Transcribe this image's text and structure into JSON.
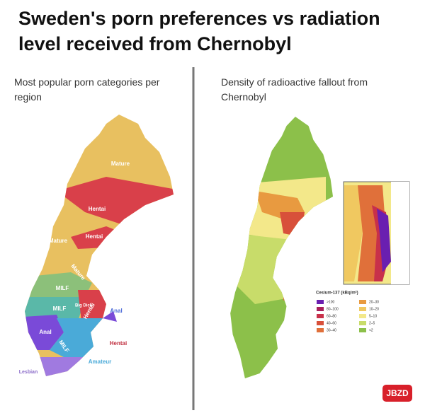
{
  "header": {
    "title": "Sweden's porn preferences vs radiation level received from Chernobyl"
  },
  "left_panel": {
    "subtitle": "Most popular porn categories per region",
    "labels": [
      "Mature",
      "Hentai",
      "Mature",
      "Hentai",
      "Mature",
      "MILF",
      "MILF",
      "Big Dick",
      "Hentai",
      "Anal",
      "Anal",
      "MILF",
      "Hentai",
      "Amateur",
      "Lesbian"
    ]
  },
  "right_panel": {
    "subtitle": "Density of radioactive fallout from Chernobyl",
    "legend": {
      "title": "Cesium-137 (kBq/m²)",
      "items": [
        {
          "label": ">100",
          "color": "#6a1fb0"
        },
        {
          "label": "80–100",
          "color": "#a8205a"
        },
        {
          "label": "60–80",
          "color": "#c8304a"
        },
        {
          "label": "40–60",
          "color": "#d8503a"
        },
        {
          "label": "30–40",
          "color": "#e0703a"
        },
        {
          "label": "20–30",
          "color": "#e89a40"
        },
        {
          "label": "10–20",
          "color": "#f0c860"
        },
        {
          "label": "5–10",
          "color": "#f3e88a"
        },
        {
          "label": "2–5",
          "color": "#c8dc6a"
        },
        {
          "label": "<2",
          "color": "#8cc04a"
        }
      ]
    }
  },
  "watermark": "JBZD"
}
